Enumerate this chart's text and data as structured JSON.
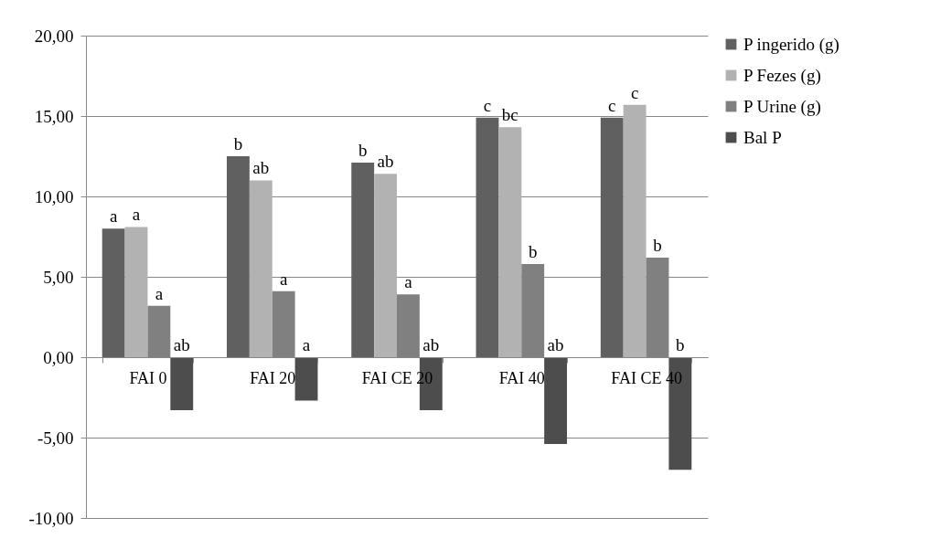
{
  "chart_data": {
    "type": "bar",
    "categories": [
      "FAI 0",
      "FAI 20",
      "FAI CE  20",
      "FAI 40",
      "FAI CE 40"
    ],
    "series": [
      {
        "name": "P ingerido (g)",
        "color": "#606060",
        "values": [
          8.0,
          12.5,
          12.1,
          14.9,
          14.9
        ]
      },
      {
        "name": "P Fezes (g)",
        "color": "#b2b2b2",
        "values": [
          8.1,
          11.0,
          11.4,
          14.3,
          15.7
        ]
      },
      {
        "name": "P Urine (g)",
        "color": "#808080",
        "values": [
          3.2,
          4.1,
          3.9,
          5.8,
          6.2
        ]
      },
      {
        "name": "Bal P",
        "color": "#4d4d4d",
        "values": [
          -3.3,
          -2.7,
          -3.3,
          -5.4,
          -7.0
        ]
      }
    ],
    "ylim": [
      -10,
      20
    ],
    "yticks": [
      {
        "value": -10,
        "label": "-10,00"
      },
      {
        "value": -5,
        "label": "-5,00"
      },
      {
        "value": 0,
        "label": "0,00"
      },
      {
        "value": 5,
        "label": "5,00"
      },
      {
        "value": 10,
        "label": "10,00"
      },
      {
        "value": 15,
        "label": "15,00"
      },
      {
        "value": 20,
        "label": "20,00"
      }
    ],
    "grid": "y",
    "legend": "right",
    "annotations": [
      "a",
      "a",
      "a",
      "ab",
      "b",
      "ab",
      "a",
      "a",
      "b",
      "ab",
      "a",
      "ab",
      "c",
      "bc",
      "b",
      "ab",
      "c",
      "c",
      "b",
      "b"
    ]
  }
}
